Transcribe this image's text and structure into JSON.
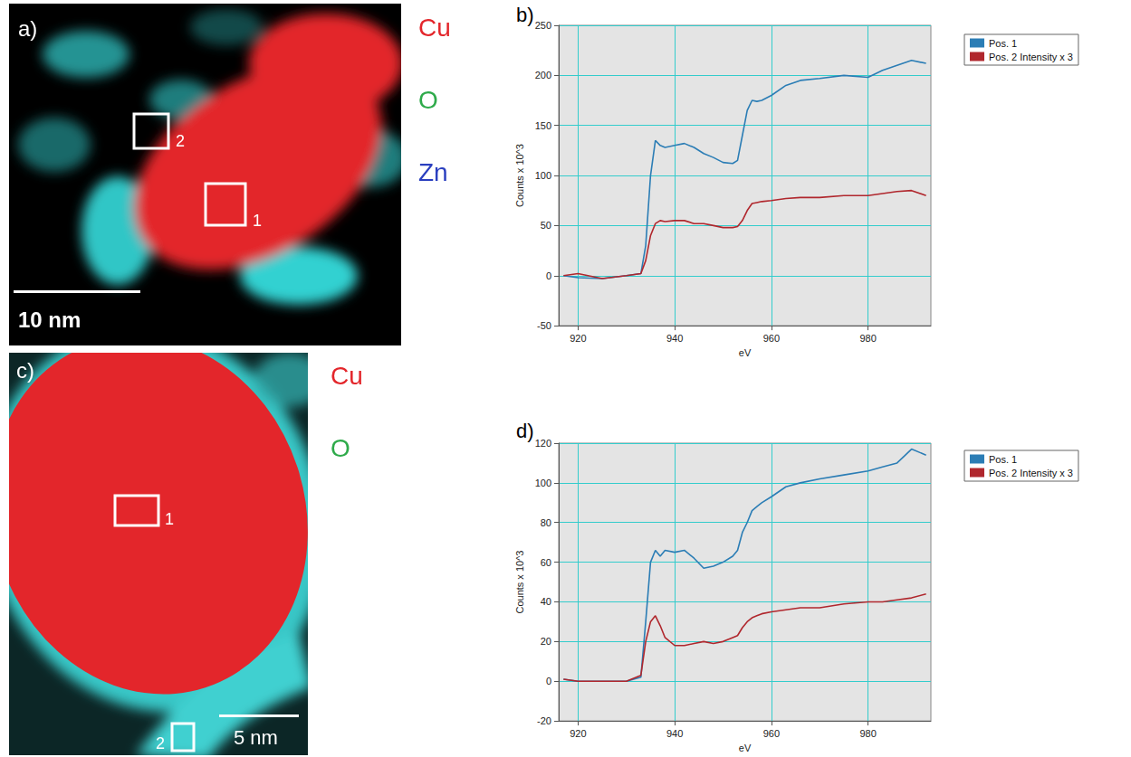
{
  "panels": [
    {
      "letter": "a)",
      "elements": [
        {
          "symbol": "Cu",
          "color": "#e3262b"
        },
        {
          "symbol": "O",
          "color": "#2eaa4a"
        },
        {
          "symbol": "Zn",
          "color": "#2a3fbf"
        }
      ],
      "scale_bar": "10 nm",
      "regions": [
        "2",
        "1"
      ]
    },
    {
      "letter": "c)",
      "elements": [
        {
          "symbol": "Cu",
          "color": "#e3262b"
        },
        {
          "symbol": "O",
          "color": "#2eaa4a"
        }
      ],
      "scale_bar": "5 nm",
      "regions": [
        "1",
        "2"
      ]
    }
  ],
  "chart_data": [
    {
      "type": "line",
      "title": "b)",
      "x_label": "eV",
      "y_label": "Counts x 10^3",
      "x": [
        917,
        920,
        925,
        930,
        933,
        934,
        935,
        936,
        937,
        938,
        940,
        942,
        944,
        946,
        948,
        950,
        952,
        953,
        954,
        955,
        956,
        957,
        958,
        960,
        963,
        966,
        970,
        975,
        980,
        983,
        986,
        989,
        992
      ],
      "series": [
        {
          "name": "Pos. 1",
          "color": "#2b7db5",
          "values": [
            0,
            -2,
            -3,
            0,
            2,
            30,
            100,
            135,
            130,
            128,
            130,
            132,
            128,
            122,
            118,
            113,
            112,
            115,
            140,
            165,
            175,
            174,
            175,
            180,
            190,
            195,
            197,
            200,
            198,
            205,
            210,
            215,
            212
          ]
        },
        {
          "name": "Pos. 2 Intensity x 3",
          "color": "#b0272d",
          "values": [
            0,
            2,
            -3,
            0,
            2,
            15,
            40,
            52,
            55,
            54,
            55,
            55,
            52,
            52,
            50,
            48,
            48,
            49,
            55,
            65,
            72,
            73,
            74,
            75,
            77,
            78,
            78,
            80,
            80,
            82,
            84,
            85,
            80
          ]
        }
      ],
      "xlim": [
        916,
        993
      ],
      "xticks": [
        920,
        940,
        960,
        980
      ],
      "ylim": [
        -50,
        250
      ],
      "yticks": [
        -50,
        0,
        50,
        100,
        150,
        200,
        250
      ],
      "grid": true,
      "legend": "right"
    },
    {
      "type": "line",
      "title": "d)",
      "x_label": "eV",
      "y_label": "Counts x 10^3",
      "x": [
        917,
        920,
        925,
        930,
        933,
        934,
        935,
        936,
        937,
        938,
        940,
        942,
        944,
        946,
        948,
        950,
        952,
        953,
        954,
        955,
        956,
        957,
        958,
        960,
        963,
        966,
        970,
        975,
        980,
        983,
        986,
        989,
        992
      ],
      "series": [
        {
          "name": "Pos. 1",
          "color": "#2b7db5",
          "values": [
            1,
            0,
            0,
            0,
            2,
            30,
            60,
            66,
            63,
            66,
            65,
            66,
            62,
            57,
            58,
            60,
            63,
            66,
            75,
            80,
            86,
            88,
            90,
            93,
            98,
            100,
            102,
            104,
            106,
            108,
            110,
            117,
            114
          ]
        },
        {
          "name": "Pos. 2 Intensity x 3",
          "color": "#b0272d",
          "values": [
            1,
            0,
            0,
            0,
            3,
            20,
            30,
            33,
            28,
            22,
            18,
            18,
            19,
            20,
            19,
            20,
            22,
            23,
            27,
            30,
            32,
            33,
            34,
            35,
            36,
            37,
            37,
            39,
            40,
            40,
            41,
            42,
            44
          ]
        }
      ],
      "xlim": [
        916,
        993
      ],
      "xticks": [
        920,
        940,
        960,
        980
      ],
      "ylim": [
        -20,
        120
      ],
      "yticks": [
        -20,
        0,
        20,
        40,
        60,
        80,
        100,
        120
      ],
      "grid": true,
      "legend": "right"
    }
  ]
}
